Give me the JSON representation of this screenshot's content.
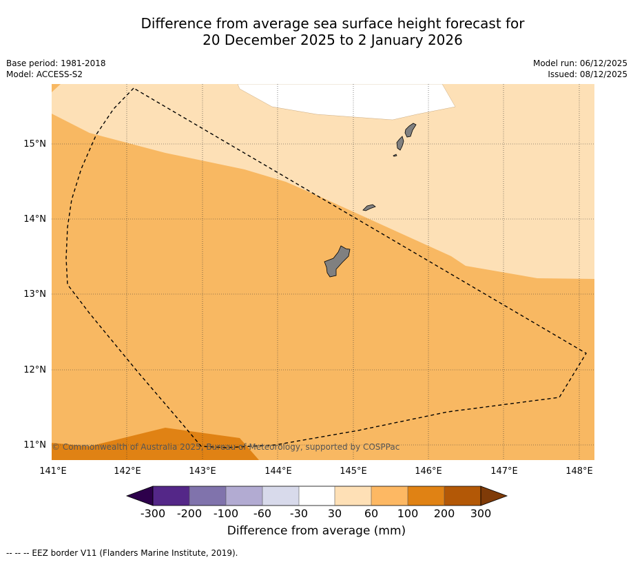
{
  "title": {
    "line1": "Difference from average sea surface height forecast for",
    "line2": "20 December 2025 to 2 January 2026"
  },
  "meta": {
    "base_period": "Base period: 1981-2018",
    "model": "Model: ACCESS-S2",
    "model_run": "Model run: 06/12/2025",
    "issued": "Issued: 08/12/2025"
  },
  "map": {
    "lon_range": [
      141.0,
      148.2
    ],
    "lat_range": [
      10.8,
      15.8
    ],
    "lon_ticks": [
      "141°E",
      "142°E",
      "143°E",
      "144°E",
      "145°E",
      "146°E",
      "147°E",
      "148°E"
    ],
    "lat_ticks": [
      "15°N",
      "14°N",
      "13°N",
      "12°N",
      "11°N"
    ],
    "copyright": "© Commonwealth of Australia 2025, Bureau of Meteorology, supported by COSPPac",
    "background_category_mm": "60 to 100",
    "colors": {
      "cat_30_60": "#fde0b6",
      "cat_60_100": "#f8b862",
      "cat_100_200": "#e08214",
      "land": "#808080",
      "no_data": "#ffffff"
    }
  },
  "colorbar": {
    "ticks": [
      "-300",
      "-200",
      "-100",
      "-60",
      "-30",
      "30",
      "60",
      "100",
      "200",
      "300"
    ],
    "colors": [
      "#2d004b",
      "#542788",
      "#8073ac",
      "#b2abd2",
      "#d8daeb",
      "#ffffff",
      "#fee0b6",
      "#fdb863",
      "#e08214",
      "#b35806",
      "#7f3b08"
    ],
    "label": "Difference from average (mm)"
  },
  "footnote": "--  --  -- EEZ border V11 (Flanders Marine Institute, 2019)."
}
